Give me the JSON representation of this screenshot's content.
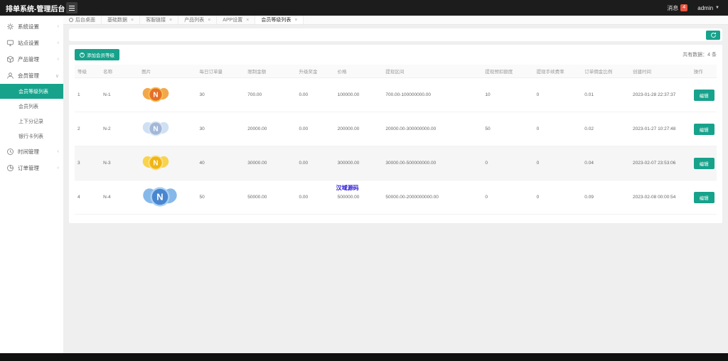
{
  "app": {
    "title": "排单系统-管理后台",
    "messages_label": "消息",
    "messages_count": "4",
    "user": "admin"
  },
  "tabs": [
    {
      "label": "后台桌面",
      "icon": "home-circle-icon",
      "closable": false,
      "active": false
    },
    {
      "label": "基础数据",
      "closable": true,
      "active": false
    },
    {
      "label": "客服链接",
      "closable": true,
      "active": false
    },
    {
      "label": "产品列表",
      "closable": true,
      "active": false
    },
    {
      "label": "APP设置",
      "closable": true,
      "active": false
    },
    {
      "label": "会员等级列表",
      "closable": true,
      "active": true
    }
  ],
  "sidebar": {
    "items": [
      {
        "icon": "gear",
        "label": "系统设置",
        "expanded": false
      },
      {
        "icon": "site",
        "label": "站点设置",
        "expanded": false
      },
      {
        "icon": "product",
        "label": "产品管理",
        "expanded": false
      },
      {
        "icon": "user",
        "label": "会员管理",
        "expanded": true,
        "children": [
          {
            "label": "会员等级列表",
            "active": true
          },
          {
            "label": "会员列表",
            "active": false
          },
          {
            "label": "上下分记录",
            "active": false
          },
          {
            "label": "银行卡列表",
            "active": false
          }
        ]
      },
      {
        "icon": "clock",
        "label": "时间管理",
        "expanded": false
      },
      {
        "icon": "order",
        "label": "订单管理",
        "expanded": false
      }
    ]
  },
  "toolbar": {
    "add_button_label": "添加会员等级",
    "total_text": "共有数据：4 条"
  },
  "watermark": {
    "text": "汉域源码",
    "color": "#2a16d6"
  },
  "colors": {
    "accent": "#17a28b",
    "badge_red": "#e8533f",
    "topbar": "#1c1c1c"
  },
  "table": {
    "headers": [
      "等级",
      "名称",
      "图片",
      "每日订单量",
      "限制金额",
      "升级奖金",
      "价格",
      "提现区间",
      "提现预扣额度",
      "提现手续费率",
      "订单佣金比例",
      "创建时间",
      "操作"
    ],
    "edit_label": "编辑",
    "rows": [
      {
        "level": "1",
        "name": "N-1",
        "badge": {
          "letter": "N",
          "wing": "#f3a74b",
          "circle": "#e5702a",
          "ring": "#f9c04f",
          "scale": 1
        },
        "daily_orders": "30",
        "limit_amount": "700.00",
        "upgrade_bonus": "0.00",
        "price": "100000.00",
        "withdraw_range": "700.00-100000000.00",
        "withdraw_deduct": "10",
        "withdraw_fee_rate": "0",
        "commission_ratio": "0.01",
        "created_at": "2023-01-28 22:37:37",
        "watermark": false
      },
      {
        "level": "2",
        "name": "N-2",
        "badge": {
          "letter": "N",
          "wing": "#cfe0f2",
          "circle": "#a3b8d8",
          "ring": "#dbe7f5",
          "scale": 1
        },
        "daily_orders": "30",
        "limit_amount": "20000.00",
        "upgrade_bonus": "0.00",
        "price": "200000.00",
        "withdraw_range": "20000.00-300000000.00",
        "withdraw_deduct": "50",
        "withdraw_fee_rate": "0",
        "commission_ratio": "0.02",
        "created_at": "2023-01-27 10:27:48",
        "watermark": false
      },
      {
        "level": "3",
        "name": "N-3",
        "badge": {
          "letter": "N",
          "wing": "#f8d34e",
          "circle": "#f0b517",
          "ring": "#fbe38a",
          "scale": 1
        },
        "daily_orders": "40",
        "limit_amount": "30000.00",
        "upgrade_bonus": "0.00",
        "price": "300000.00",
        "withdraw_range": "30000.00-500000000.00",
        "withdraw_deduct": "0",
        "withdraw_fee_rate": "0",
        "commission_ratio": "0.04",
        "created_at": "2023-02-07 23:53:06",
        "watermark": false
      },
      {
        "level": "4",
        "name": "N-4",
        "badge": {
          "letter": "N",
          "wing": "#86b9ea",
          "circle": "#4a86cf",
          "ring": "#a9d0f5",
          "scale": 1.3
        },
        "daily_orders": "50",
        "limit_amount": "50000.00",
        "upgrade_bonus": "0.00",
        "price": "500000.00",
        "withdraw_range": "50000.00-2000000000.00",
        "withdraw_deduct": "0",
        "withdraw_fee_rate": "0",
        "commission_ratio": "0.09",
        "created_at": "2023-02-08 00:00:54",
        "watermark": true
      }
    ]
  }
}
